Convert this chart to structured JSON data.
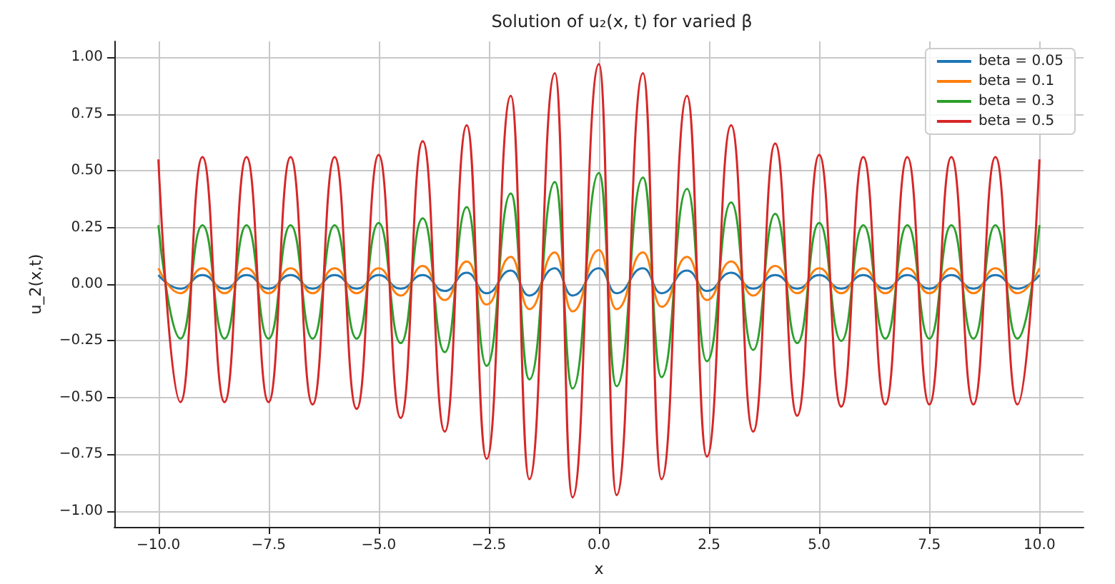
{
  "chart_data": {
    "type": "line",
    "title": "Solution of u₂(x, t) for varied β",
    "xlabel": "x",
    "ylabel": "u_2(x,t)",
    "x": [
      -10,
      -9.5,
      -9,
      -8.5,
      -8,
      -7.5,
      -7,
      -6.5,
      -6,
      -5.5,
      -5,
      -4.5,
      -4,
      -3.5,
      -3,
      -2.55,
      -2,
      -1.58,
      -1,
      -0.6,
      0,
      0.4,
      1,
      1.42,
      2,
      2.45,
      3,
      3.5,
      4,
      4.5,
      5,
      5.5,
      6,
      6.5,
      7,
      7.5,
      8,
      8.5,
      9,
      9.5,
      10
    ],
    "series": [
      {
        "name": "beta = 0.05",
        "color": "#1f77b4",
        "values": [
          0.04,
          -0.02,
          0.04,
          -0.02,
          0.04,
          -0.02,
          0.04,
          -0.02,
          0.04,
          -0.02,
          0.04,
          -0.02,
          0.04,
          -0.03,
          0.05,
          -0.04,
          0.06,
          -0.05,
          0.07,
          -0.05,
          0.07,
          -0.04,
          0.07,
          -0.04,
          0.06,
          -0.03,
          0.05,
          -0.02,
          0.04,
          -0.02,
          0.04,
          -0.02,
          0.04,
          -0.02,
          0.04,
          -0.02,
          0.04,
          -0.02,
          0.04,
          -0.02,
          0.04
        ]
      },
      {
        "name": "beta = 0.1",
        "color": "#ff7f0e",
        "values": [
          0.07,
          -0.04,
          0.07,
          -0.04,
          0.07,
          -0.04,
          0.07,
          -0.04,
          0.07,
          -0.04,
          0.07,
          -0.05,
          0.08,
          -0.07,
          0.1,
          -0.09,
          0.12,
          -0.11,
          0.14,
          -0.12,
          0.15,
          -0.11,
          0.14,
          -0.1,
          0.12,
          -0.07,
          0.1,
          -0.05,
          0.08,
          -0.04,
          0.07,
          -0.04,
          0.07,
          -0.04,
          0.07,
          -0.04,
          0.07,
          -0.04,
          0.07,
          -0.04,
          0.07
        ]
      },
      {
        "name": "beta = 0.3",
        "color": "#2ca02c",
        "values": [
          0.26,
          -0.24,
          0.26,
          -0.24,
          0.26,
          -0.24,
          0.26,
          -0.24,
          0.26,
          -0.24,
          0.27,
          -0.26,
          0.29,
          -0.3,
          0.34,
          -0.36,
          0.4,
          -0.42,
          0.45,
          -0.46,
          0.49,
          -0.45,
          0.47,
          -0.41,
          0.42,
          -0.34,
          0.36,
          -0.29,
          0.31,
          -0.26,
          0.27,
          -0.25,
          0.26,
          -0.24,
          0.26,
          -0.24,
          0.26,
          -0.24,
          0.26,
          -0.24,
          0.26
        ]
      },
      {
        "name": "beta = 0.5",
        "color": "#d62728",
        "values": [
          0.55,
          -0.52,
          0.56,
          -0.52,
          0.56,
          -0.52,
          0.56,
          -0.53,
          0.56,
          -0.55,
          0.57,
          -0.59,
          0.63,
          -0.65,
          0.7,
          -0.77,
          0.83,
          -0.86,
          0.93,
          -0.94,
          0.97,
          -0.93,
          0.93,
          -0.86,
          0.83,
          -0.76,
          0.7,
          -0.65,
          0.62,
          -0.58,
          0.57,
          -0.54,
          0.56,
          -0.53,
          0.56,
          -0.53,
          0.56,
          -0.53,
          0.56,
          -0.53,
          0.55
        ]
      }
    ],
    "xlim": [
      -11,
      11
    ],
    "ylim": [
      -1.07,
      1.07
    ],
    "xticks": [
      {
        "value": -10,
        "label": "−10.0"
      },
      {
        "value": -7.5,
        "label": "−7.5"
      },
      {
        "value": -5,
        "label": "−5.0"
      },
      {
        "value": -2.5,
        "label": "−2.5"
      },
      {
        "value": 0,
        "label": "0.0"
      },
      {
        "value": 2.5,
        "label": "2.5"
      },
      {
        "value": 5,
        "label": "5.0"
      },
      {
        "value": 7.5,
        "label": "7.5"
      },
      {
        "value": 10,
        "label": "10.0"
      }
    ],
    "yticks": [
      {
        "value": -1,
        "label": "−1.00"
      },
      {
        "value": -0.75,
        "label": "−0.75"
      },
      {
        "value": -0.5,
        "label": "−0.50"
      },
      {
        "value": -0.25,
        "label": "−0.25"
      },
      {
        "value": 0,
        "label": "0.00"
      },
      {
        "value": 0.25,
        "label": "0.25"
      },
      {
        "value": 0.5,
        "label": "0.50"
      },
      {
        "value": 0.75,
        "label": "0.75"
      },
      {
        "value": 1,
        "label": "1.00"
      }
    ],
    "grid": true,
    "legend": "top right",
    "marker": "none",
    "line_style": "solid"
  }
}
